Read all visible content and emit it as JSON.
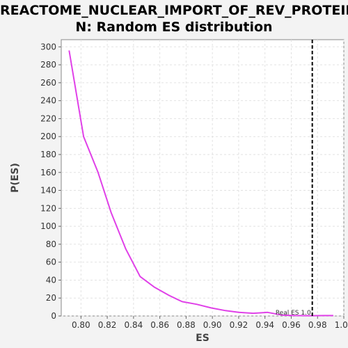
{
  "chart_data": {
    "type": "line",
    "title_line1": "REACTOME_NUCLEAR_IMPORT_OF_REV_PROTEIN",
    "title_line2": "N: Random ES distribution",
    "xlabel": "ES",
    "ylabel": "P(ES)",
    "xlim": [
      0.785,
      1.0
    ],
    "ylim": [
      0,
      308
    ],
    "x_ticks": [
      "0.80",
      "0.82",
      "0.84",
      "0.86",
      "0.88",
      "0.90",
      "0.92",
      "0.94",
      "0.96",
      "0.98",
      "1.00"
    ],
    "x_tick_values": [
      0.8,
      0.82,
      0.84,
      0.86,
      0.88,
      0.9,
      0.92,
      0.94,
      0.96,
      0.98,
      1.0
    ],
    "y_ticks": [
      "0",
      "20",
      "40",
      "60",
      "80",
      "100",
      "120",
      "140",
      "160",
      "180",
      "200",
      "220",
      "240",
      "260",
      "280",
      "300"
    ],
    "y_tick_values": [
      0,
      20,
      40,
      60,
      80,
      100,
      120,
      140,
      160,
      180,
      200,
      220,
      240,
      260,
      280,
      300
    ],
    "grid": true,
    "series": [
      {
        "color": "#e040e8",
        "x": [
          0.791,
          0.802,
          0.813,
          0.823,
          0.834,
          0.845,
          0.856,
          0.867,
          0.877,
          0.888,
          0.899,
          0.91,
          0.92,
          0.931,
          0.942,
          0.953,
          0.963,
          0.974,
          0.985,
          0.992
        ],
        "y": [
          296,
          200,
          160,
          115,
          75,
          44,
          32,
          23,
          16,
          13,
          9,
          6,
          4,
          3,
          4,
          1,
          0.5,
          0.3,
          0.5,
          0.5
        ]
      }
    ],
    "real_es": {
      "value": 0.976,
      "label": "Real ES 1.0",
      "color": "#000000"
    }
  }
}
